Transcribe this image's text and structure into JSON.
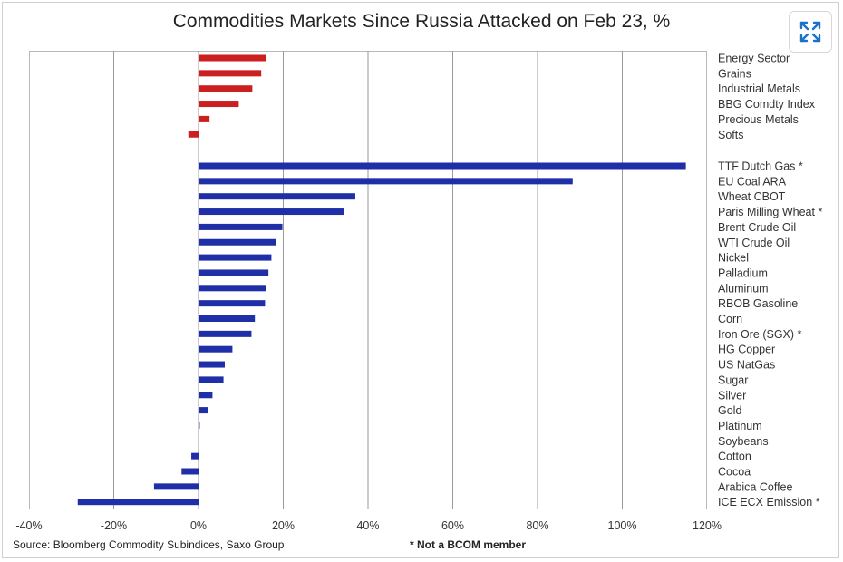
{
  "title": "Commodities Markets Since Russia Attacked on Feb 23, %",
  "toolbar": {
    "expand_icon": "expand-icon"
  },
  "footer": {
    "source": "Source: Bloomberg Commodity Subindices, Saxo Group",
    "note": "* Not a BCOM member"
  },
  "colors": {
    "sector": "#cc1f1f",
    "commodity": "#1f2fa8",
    "grid": "#9a9a9a",
    "zero": "#9a9a9a"
  },
  "chart_data": {
    "type": "bar",
    "orientation": "horizontal",
    "title": "Commodities Markets Since Russia Attacked on Feb 23, %",
    "xlim": [
      -40,
      120
    ],
    "xticks": [
      -40,
      -20,
      0,
      20,
      40,
      60,
      80,
      100,
      120
    ],
    "xtick_labels": [
      "-40%",
      "-20%",
      "0%",
      "20%",
      "40%",
      "60%",
      "80%",
      "100%",
      "120%"
    ],
    "grid": "vertical",
    "groups": [
      {
        "name": "sectors",
        "color": "#cc1f1f",
        "categories": [
          "Energy Sector",
          "Grains",
          "Industrial Metals",
          "BBG Comdty Index",
          "Precious Metals",
          "Softs"
        ],
        "values": [
          16,
          14.8,
          12.7,
          9.5,
          2.6,
          -2.4
        ]
      },
      {
        "name": "commodities",
        "color": "#1f2fa8",
        "categories": [
          "TTF Dutch Gas *",
          "EU Coal ARA",
          "Wheat CBOT",
          "Paris Milling Wheat *",
          "Brent Crude Oil",
          "WTI Crude Oil",
          "Nickel",
          "Palladium",
          "Aluminum",
          "RBOB Gasoline",
          "Corn",
          "Iron Ore (SGX) *",
          "HG Copper",
          "US NatGas",
          "Sugar",
          "Silver",
          "Gold",
          "Platinum",
          "Soybeans",
          "Cotton",
          "Cocoa",
          "Arabica Coffee",
          "ICE ECX Emission *"
        ],
        "values": [
          115,
          88.3,
          37,
          34.3,
          19.8,
          18.4,
          17.2,
          16.5,
          15.9,
          15.7,
          13.3,
          12.5,
          8,
          6.2,
          5.9,
          3.3,
          2.3,
          0.3,
          0.2,
          -1.7,
          -4,
          -10.5,
          -28.5
        ]
      }
    ]
  }
}
